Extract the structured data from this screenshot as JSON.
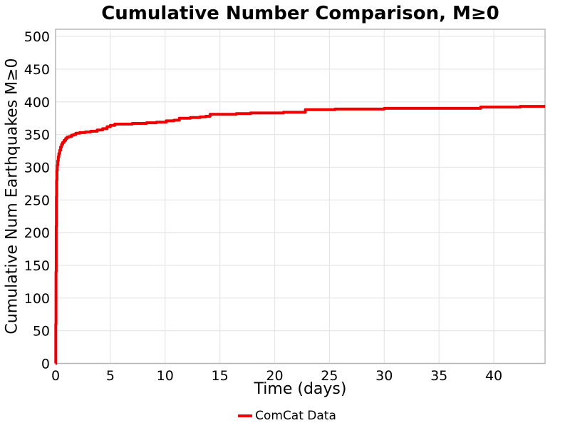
{
  "chart_data": {
    "type": "line",
    "title": "Cumulative Number Comparison, M≥0",
    "xlabel": "Time (days)",
    "ylabel": "Cumulative Num Earthquakes M≥0",
    "xlim": [
      0,
      44.68
    ],
    "ylim": [
      0,
      511
    ],
    "xticks": [
      0,
      5,
      10,
      15,
      20,
      25,
      30,
      35,
      40
    ],
    "yticks": [
      0,
      50,
      100,
      150,
      200,
      250,
      300,
      350,
      400,
      450,
      500
    ],
    "grid": true,
    "legend_position": "bottom-center",
    "colors": {
      "grid": "#e6e6e6",
      "spine": "#b3b3b3",
      "text": "#000000"
    },
    "series": [
      {
        "name": "ComCat Data",
        "color": "#ee0000",
        "line_width": 4,
        "step": true,
        "points": [
          [
            0,
            0
          ],
          [
            0.02,
            60
          ],
          [
            0.04,
            140
          ],
          [
            0.06,
            210
          ],
          [
            0.08,
            255
          ],
          [
            0.1,
            280
          ],
          [
            0.13,
            295
          ],
          [
            0.16,
            303
          ],
          [
            0.2,
            310
          ],
          [
            0.25,
            316
          ],
          [
            0.3,
            321
          ],
          [
            0.38,
            326
          ],
          [
            0.46,
            331
          ],
          [
            0.55,
            335
          ],
          [
            0.65,
            338
          ],
          [
            0.78,
            341
          ],
          [
            0.92,
            344
          ],
          [
            1.05,
            346
          ],
          [
            1.25,
            347
          ],
          [
            1.45,
            349
          ],
          [
            1.65,
            350
          ],
          [
            1.85,
            352
          ],
          [
            2.2,
            353
          ],
          [
            2.7,
            354
          ],
          [
            3.2,
            355
          ],
          [
            3.8,
            357
          ],
          [
            4.3,
            359
          ],
          [
            4.7,
            362
          ],
          [
            5.0,
            364
          ],
          [
            5.4,
            366
          ],
          [
            6.2,
            366
          ],
          [
            7.0,
            367
          ],
          [
            8.3,
            368
          ],
          [
            9.2,
            369
          ],
          [
            10.1,
            371
          ],
          [
            10.8,
            372
          ],
          [
            11.3,
            375
          ],
          [
            12.3,
            376
          ],
          [
            13.2,
            377
          ],
          [
            13.7,
            378
          ],
          [
            14.1,
            381
          ],
          [
            15.5,
            381
          ],
          [
            16.5,
            382
          ],
          [
            17.8,
            383
          ],
          [
            19.5,
            383
          ],
          [
            20.8,
            384
          ],
          [
            22.0,
            384
          ],
          [
            22.8,
            388
          ],
          [
            24.0,
            388
          ],
          [
            25.5,
            389
          ],
          [
            28.0,
            389
          ],
          [
            30.0,
            390
          ],
          [
            33.0,
            390
          ],
          [
            36.5,
            390
          ],
          [
            38.8,
            392
          ],
          [
            40.5,
            392
          ],
          [
            42.4,
            393
          ],
          [
            44.68,
            393
          ]
        ]
      }
    ]
  }
}
